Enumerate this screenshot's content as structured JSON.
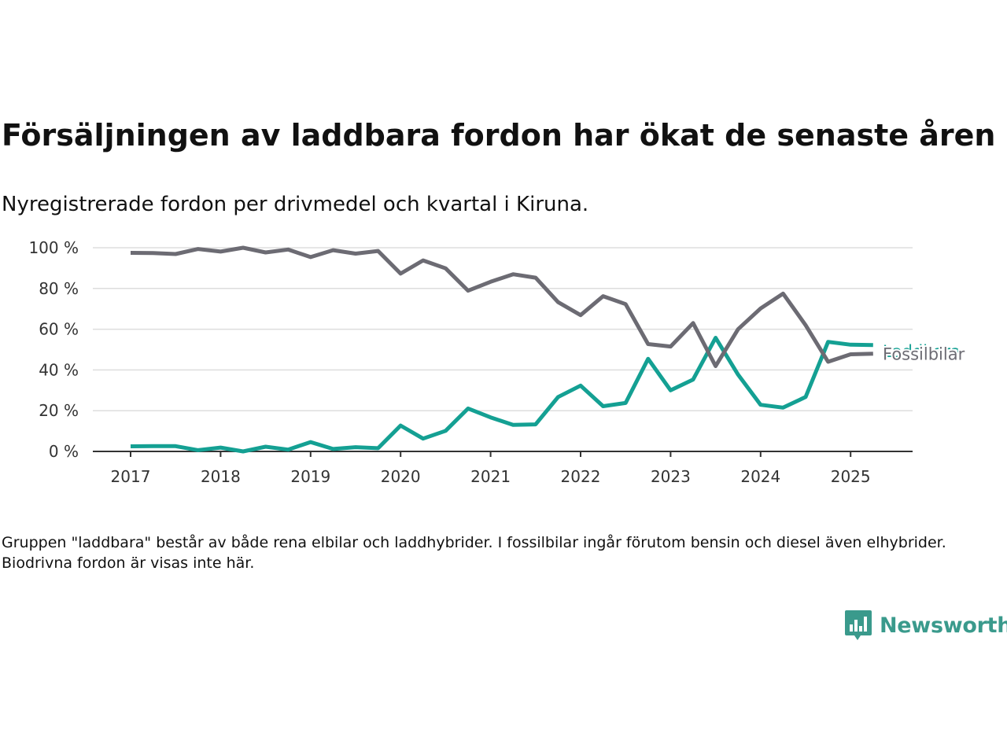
{
  "title": "Försäljningen av laddbara fordon har ökat de senaste åren",
  "subtitle": "Nyregistrerade fordon per drivmedel och kvartal i Kiruna.",
  "note": "Gruppen \"laddbara\" består av både rena elbilar och laddhybrider. I fossilbilar ingår förutom bensin och diesel även elhybrider. Biodrivna fordon är visas inte här.",
  "brand": {
    "name": "Newsworthy",
    "icon": "newsworthy-logo-icon",
    "color": "#3a9a8c"
  },
  "chart_data": {
    "type": "line",
    "x_quarters": [
      "2017-Q1",
      "2017-Q2",
      "2017-Q3",
      "2017-Q4",
      "2018-Q1",
      "2018-Q2",
      "2018-Q3",
      "2018-Q4",
      "2019-Q1",
      "2019-Q2",
      "2019-Q3",
      "2019-Q4",
      "2020-Q1",
      "2020-Q2",
      "2020-Q3",
      "2020-Q4",
      "2021-Q1",
      "2021-Q2",
      "2021-Q3",
      "2021-Q4",
      "2022-Q1",
      "2022-Q2",
      "2022-Q3",
      "2022-Q4",
      "2023-Q1",
      "2023-Q2",
      "2023-Q3",
      "2023-Q4",
      "2024-Q1",
      "2024-Q2",
      "2024-Q3",
      "2024-Q4",
      "2025-Q1",
      "2025-Q2"
    ],
    "x_ticks": [
      "2017",
      "2018",
      "2019",
      "2020",
      "2021",
      "2022",
      "2023",
      "2024",
      "2025"
    ],
    "y_ticks": [
      "0 %",
      "20 %",
      "40 %",
      "60 %",
      "80 %",
      "100 %"
    ],
    "ylim": [
      0,
      100
    ],
    "grid": true,
    "series": [
      {
        "name": "Fossilbilar",
        "color": "#6c6b73",
        "values": [
          97.5,
          97.4,
          96.9,
          99.4,
          98.1,
          100,
          97.7,
          99.1,
          95.4,
          98.8,
          97.1,
          98.4,
          87.3,
          93.8,
          89.9,
          78.9,
          83.3,
          87,
          85.3,
          73.3,
          66.9,
          76.2,
          72.3,
          52.7,
          51.5,
          63,
          41.9,
          60,
          70.2,
          77.5,
          62,
          44,
          47.7,
          48
        ]
      },
      {
        "name": "Laddbara",
        "color": "#14a093",
        "values": [
          2.5,
          2.6,
          2.6,
          0.6,
          1.9,
          0,
          2.3,
          0.9,
          4.6,
          1.2,
          2.1,
          1.6,
          12.7,
          6.3,
          10.1,
          21.1,
          16.7,
          13,
          13.3,
          26.7,
          32.3,
          22.2,
          23.8,
          45.5,
          30,
          35.3,
          55.8,
          37.7,
          22.9,
          21.5,
          26.7,
          53.8,
          52.4,
          52.2
        ]
      }
    ]
  }
}
